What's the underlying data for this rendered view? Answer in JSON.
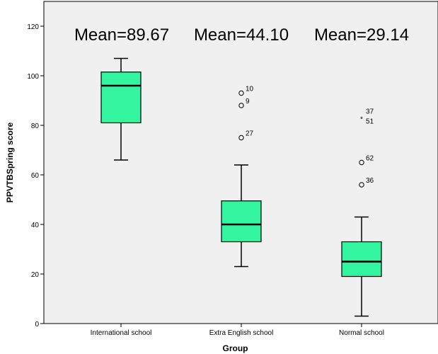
{
  "chart_data": {
    "type": "box",
    "xlabel": "Group",
    "ylabel": "PPVTBSpring score",
    "ylim": [
      0,
      130
    ],
    "yticks": [
      0,
      20,
      40,
      60,
      80,
      100,
      120
    ],
    "grid": false,
    "legend": "none",
    "colors": {
      "box_fill": "#33f5a0",
      "plot_background": "#f0f0f0",
      "line": "#000000"
    },
    "categories": [
      "International school",
      "Extra English school",
      "Normal school"
    ],
    "boxes": [
      {
        "category": "International school",
        "whisker_low": 66,
        "q1": 81,
        "median": 96,
        "q3": 101.5,
        "whisker_high": 107,
        "outliers": []
      },
      {
        "category": "Extra English school",
        "whisker_low": 23,
        "q1": 33,
        "median": 40,
        "q3": 49.5,
        "whisker_high": 64,
        "outliers": [
          {
            "value": 93,
            "label": "10",
            "marker": "circle"
          },
          {
            "value": 88,
            "label": "9",
            "marker": "circle"
          },
          {
            "value": 75,
            "label": "27",
            "marker": "circle"
          }
        ]
      },
      {
        "category": "Normal school",
        "whisker_low": 3,
        "q1": 19,
        "median": 25,
        "q3": 33,
        "whisker_high": 43,
        "outliers": [
          {
            "value": 83,
            "label": "37",
            "marker": "star"
          },
          {
            "value": 83,
            "label": "51",
            "marker": "none"
          },
          {
            "value": 65,
            "label": "62",
            "marker": "circle"
          },
          {
            "value": 56,
            "label": "36",
            "marker": "circle"
          }
        ]
      }
    ],
    "annotations": [
      "Mean=89.67",
      "Mean=44.10",
      "Mean=29.14"
    ]
  }
}
